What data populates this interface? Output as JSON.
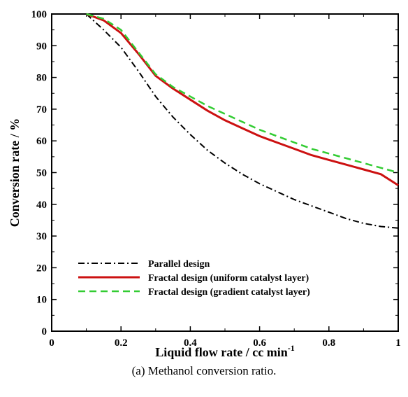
{
  "caption": "(a) Methanol conversion ratio.",
  "colors": {
    "parallel": "#000000",
    "fractal_uniform": "#cc1111",
    "fractal_gradient": "#33cc33"
  },
  "chart_data": {
    "type": "line",
    "title": "",
    "xlabel": "Liquid flow rate / cc min",
    "xlabel_superscript": "-1",
    "ylabel": "Conversion rate / %",
    "xlim": [
      0,
      1
    ],
    "ylim": [
      0,
      100
    ],
    "x_ticks": [
      "0",
      "0.2",
      "0.4",
      "0.6",
      "0.8",
      "1"
    ],
    "y_ticks": [
      "0",
      "10",
      "20",
      "30",
      "40",
      "50",
      "60",
      "70",
      "80",
      "90",
      "100"
    ],
    "grid": false,
    "legend_position": "bottom-left",
    "series": [
      {
        "name": "Parallel design",
        "style": "dash-dot",
        "x": [
          0.1,
          0.15,
          0.2,
          0.25,
          0.3,
          0.35,
          0.4,
          0.45,
          0.5,
          0.55,
          0.6,
          0.65,
          0.7,
          0.75,
          0.8,
          0.85,
          0.9,
          0.95,
          1.0
        ],
        "y": [
          100,
          95,
          89.5,
          82,
          74,
          67.5,
          62,
          57,
          53,
          49.5,
          46.5,
          44,
          41.5,
          39.5,
          37.5,
          35.5,
          34,
          33,
          32.5
        ]
      },
      {
        "name": "Fractal design (uniform catalyst layer)",
        "style": "solid",
        "x": [
          0.1,
          0.15,
          0.2,
          0.25,
          0.3,
          0.35,
          0.4,
          0.45,
          0.5,
          0.55,
          0.6,
          0.65,
          0.7,
          0.75,
          0.8,
          0.85,
          0.9,
          0.95,
          1.0
        ],
        "y": [
          100,
          98,
          94,
          87.5,
          80.5,
          76.5,
          73,
          69.5,
          66.5,
          64,
          61.5,
          59.5,
          57.5,
          55.5,
          54,
          52.5,
          51,
          49.5,
          46
        ]
      },
      {
        "name": "Fractal design (gradient catalyst layer)",
        "style": "dashed",
        "x": [
          0.1,
          0.15,
          0.2,
          0.25,
          0.3,
          0.35,
          0.4,
          0.45,
          0.5,
          0.55,
          0.6,
          0.65,
          0.7,
          0.75,
          0.8,
          0.85,
          0.9,
          0.95,
          1.0
        ],
        "y": [
          100,
          98.5,
          95,
          88,
          81,
          77,
          74,
          71,
          68.5,
          66,
          63.5,
          61.5,
          59.5,
          57.5,
          56,
          54.5,
          53,
          51.5,
          50
        ]
      }
    ]
  }
}
